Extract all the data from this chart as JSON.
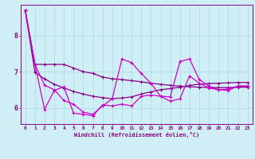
{
  "xlabel": "Windchill (Refroidissement éolien,°C)",
  "xlim": [
    -0.5,
    23.5
  ],
  "ylim": [
    5.55,
    8.85
  ],
  "yticks": [
    6,
    7,
    8
  ],
  "xticks": [
    0,
    1,
    2,
    3,
    4,
    5,
    6,
    7,
    8,
    9,
    10,
    11,
    12,
    13,
    14,
    15,
    16,
    17,
    18,
    19,
    20,
    21,
    22,
    23
  ],
  "background_color": "#d0eef5",
  "line_color": "#880088",
  "line_color2": "#cc00cc",
  "grid_color": "#aad8e8",
  "series": {
    "upper_smooth": [
      8.7,
      7.2,
      7.2,
      7.2,
      7.2,
      7.1,
      7.0,
      6.95,
      6.85,
      6.8,
      6.78,
      6.75,
      6.72,
      6.68,
      6.65,
      6.62,
      6.6,
      6.58,
      6.57,
      6.56,
      6.56,
      6.56,
      6.57,
      6.57
    ],
    "lower_smooth": [
      8.7,
      6.98,
      6.8,
      6.65,
      6.55,
      6.45,
      6.38,
      6.32,
      6.28,
      6.25,
      6.27,
      6.3,
      6.38,
      6.44,
      6.5,
      6.53,
      6.57,
      6.62,
      6.65,
      6.67,
      6.68,
      6.69,
      6.7,
      6.7
    ],
    "jagged1": [
      8.7,
      7.2,
      6.62,
      6.5,
      6.2,
      6.1,
      5.88,
      5.82,
      6.05,
      6.25,
      7.35,
      7.25,
      6.95,
      6.68,
      6.32,
      6.3,
      7.28,
      7.35,
      6.78,
      6.6,
      6.5,
      6.52,
      6.6,
      6.6
    ],
    "jagged2": [
      8.7,
      7.2,
      5.95,
      6.48,
      6.58,
      5.85,
      5.82,
      5.78,
      6.08,
      6.05,
      6.1,
      6.05,
      6.32,
      6.35,
      6.32,
      6.18,
      6.25,
      6.88,
      6.68,
      6.55,
      6.5,
      6.48,
      6.6,
      6.6
    ]
  }
}
